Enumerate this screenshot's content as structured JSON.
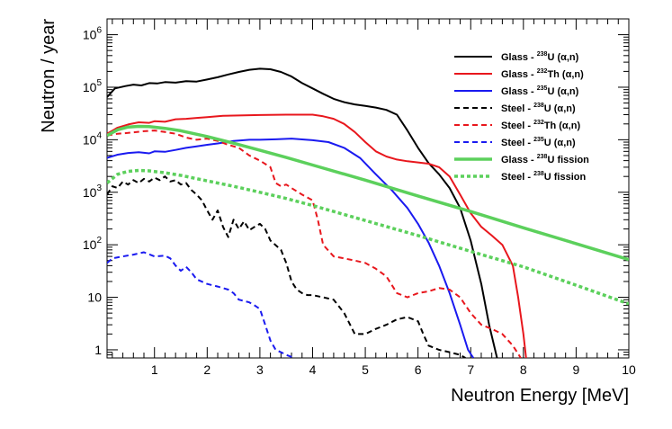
{
  "chart_data": {
    "type": "line",
    "title": "",
    "xlabel": "Neutron Energy [MeV]",
    "ylabel": "Neutron / year",
    "xlim": [
      0.1,
      10
    ],
    "ylim": [
      0.7,
      2000000
    ],
    "yscale": "log",
    "grid": false,
    "legend_position": "top-right",
    "x_ticks": [
      1,
      2,
      3,
      4,
      5,
      6,
      7,
      8,
      9,
      10
    ],
    "x_tick_labels": [
      "1",
      "2",
      "3",
      "4",
      "5",
      "6",
      "7",
      "8",
      "9",
      "10"
    ],
    "y_ticks": [
      {
        "value": 1,
        "base": "1",
        "exp": ""
      },
      {
        "value": 10,
        "base": "10",
        "exp": ""
      },
      {
        "value": 100,
        "base": "10",
        "exp": "2"
      },
      {
        "value": 1000,
        "base": "10",
        "exp": "3"
      },
      {
        "value": 10000,
        "base": "10",
        "exp": "4"
      },
      {
        "value": 100000,
        "base": "10",
        "exp": "5"
      },
      {
        "value": 1000000,
        "base": "10",
        "exp": "6"
      }
    ],
    "series": [
      {
        "name": "Glass - 238U (α,n)",
        "label_pre": "Glass - ",
        "label_sup": "238",
        "label_post": "U  (α,n)",
        "color": "#000000",
        "dash": "solid",
        "width": 2,
        "points": [
          [
            0.1,
            65000
          ],
          [
            0.25,
            95000
          ],
          [
            0.45,
            105000
          ],
          [
            0.6,
            112000
          ],
          [
            0.75,
            108000
          ],
          [
            0.9,
            120000
          ],
          [
            1.05,
            118000
          ],
          [
            1.2,
            125000
          ],
          [
            1.4,
            122000
          ],
          [
            1.6,
            130000
          ],
          [
            1.8,
            128000
          ],
          [
            2.0,
            140000
          ],
          [
            2.2,
            155000
          ],
          [
            2.4,
            175000
          ],
          [
            2.6,
            195000
          ],
          [
            2.8,
            215000
          ],
          [
            3.0,
            225000
          ],
          [
            3.2,
            220000
          ],
          [
            3.4,
            195000
          ],
          [
            3.6,
            160000
          ],
          [
            3.8,
            120000
          ],
          [
            4.0,
            95000
          ],
          [
            4.2,
            75000
          ],
          [
            4.4,
            60000
          ],
          [
            4.6,
            52000
          ],
          [
            4.8,
            47000
          ],
          [
            5.0,
            44000
          ],
          [
            5.2,
            41000
          ],
          [
            5.4,
            37000
          ],
          [
            5.6,
            30000
          ],
          [
            5.8,
            15000
          ],
          [
            6.0,
            7000
          ],
          [
            6.2,
            3600
          ],
          [
            6.4,
            2200
          ],
          [
            6.6,
            1200
          ],
          [
            6.8,
            500
          ],
          [
            7.0,
            120
          ],
          [
            7.2,
            18
          ],
          [
            7.35,
            3
          ],
          [
            7.5,
            0.7
          ]
        ]
      },
      {
        "name": "Glass - 232Th (α,n)",
        "label_pre": "Glass - ",
        "label_sup": "232",
        "label_post": "Th (α,n)",
        "color": "#e8171d",
        "dash": "solid",
        "width": 2,
        "points": [
          [
            0.1,
            13000
          ],
          [
            0.3,
            17000
          ],
          [
            0.5,
            19500
          ],
          [
            0.7,
            21500
          ],
          [
            0.9,
            21000
          ],
          [
            1.0,
            22500
          ],
          [
            1.2,
            22000
          ],
          [
            1.4,
            24500
          ],
          [
            1.6,
            25000
          ],
          [
            1.8,
            26000
          ],
          [
            2.0,
            27000
          ],
          [
            2.3,
            28500
          ],
          [
            2.6,
            29000
          ],
          [
            3.0,
            29500
          ],
          [
            3.5,
            30000
          ],
          [
            4.0,
            30000
          ],
          [
            4.2,
            28000
          ],
          [
            4.4,
            25000
          ],
          [
            4.6,
            20000
          ],
          [
            4.8,
            14000
          ],
          [
            5.0,
            9000
          ],
          [
            5.2,
            6000
          ],
          [
            5.4,
            4800
          ],
          [
            5.6,
            4200
          ],
          [
            5.8,
            3900
          ],
          [
            6.0,
            3700
          ],
          [
            6.2,
            3500
          ],
          [
            6.4,
            3000
          ],
          [
            6.6,
            2000
          ],
          [
            6.8,
            900
          ],
          [
            7.0,
            400
          ],
          [
            7.2,
            220
          ],
          [
            7.4,
            150
          ],
          [
            7.6,
            100
          ],
          [
            7.8,
            40
          ],
          [
            7.9,
            10
          ],
          [
            8.0,
            2
          ],
          [
            8.05,
            0.7
          ]
        ]
      },
      {
        "name": "Glass - 235U (α,n)",
        "label_pre": "Glass - ",
        "label_sup": "235",
        "label_post": "U  (α,n)",
        "color": "#1a1af0",
        "dash": "solid",
        "width": 2,
        "points": [
          [
            0.1,
            4500
          ],
          [
            0.3,
            5200
          ],
          [
            0.5,
            5600
          ],
          [
            0.7,
            5800
          ],
          [
            0.9,
            5500
          ],
          [
            1.0,
            6000
          ],
          [
            1.2,
            5900
          ],
          [
            1.4,
            6400
          ],
          [
            1.6,
            7000
          ],
          [
            1.8,
            7500
          ],
          [
            2.0,
            8000
          ],
          [
            2.2,
            8500
          ],
          [
            2.5,
            9500
          ],
          [
            2.8,
            10000
          ],
          [
            3.0,
            10000
          ],
          [
            3.3,
            10200
          ],
          [
            3.6,
            10500
          ],
          [
            4.0,
            9800
          ],
          [
            4.3,
            9000
          ],
          [
            4.6,
            7000
          ],
          [
            4.9,
            4500
          ],
          [
            5.2,
            2200
          ],
          [
            5.5,
            1100
          ],
          [
            5.8,
            500
          ],
          [
            6.0,
            250
          ],
          [
            6.2,
            110
          ],
          [
            6.4,
            40
          ],
          [
            6.6,
            12
          ],
          [
            6.8,
            3
          ],
          [
            6.95,
            1
          ],
          [
            7.05,
            0.7
          ]
        ]
      },
      {
        "name": "Steel - 238U (α,n)",
        "label_pre": "Steel - ",
        "label_sup": "238",
        "label_post": "U  (α,n)",
        "color": "#000000",
        "dash": "dashed",
        "width": 2,
        "points": [
          [
            0.1,
            900
          ],
          [
            0.2,
            1300
          ],
          [
            0.3,
            1200
          ],
          [
            0.4,
            1600
          ],
          [
            0.5,
            1400
          ],
          [
            0.6,
            1700
          ],
          [
            0.7,
            1500
          ],
          [
            0.8,
            1800
          ],
          [
            0.9,
            1600
          ],
          [
            1.0,
            1900
          ],
          [
            1.1,
            1700
          ],
          [
            1.2,
            2000
          ],
          [
            1.3,
            1600
          ],
          [
            1.4,
            1700
          ],
          [
            1.5,
            1400
          ],
          [
            1.6,
            1500
          ],
          [
            1.7,
            1100
          ],
          [
            1.8,
            900
          ],
          [
            1.9,
            700
          ],
          [
            2.0,
            450
          ],
          [
            2.1,
            300
          ],
          [
            2.2,
            450
          ],
          [
            2.3,
            220
          ],
          [
            2.4,
            140
          ],
          [
            2.5,
            300
          ],
          [
            2.6,
            200
          ],
          [
            2.7,
            280
          ],
          [
            2.8,
            190
          ],
          [
            2.9,
            220
          ],
          [
            3.0,
            250
          ],
          [
            3.1,
            200
          ],
          [
            3.2,
            120
          ],
          [
            3.4,
            80
          ],
          [
            3.5,
            45
          ],
          [
            3.6,
            20
          ],
          [
            3.7,
            14
          ],
          [
            3.8,
            12
          ],
          [
            3.9,
            11
          ],
          [
            4.0,
            11
          ],
          [
            4.2,
            10
          ],
          [
            4.4,
            9
          ],
          [
            4.6,
            5
          ],
          [
            4.8,
            2
          ],
          [
            5.0,
            2
          ],
          [
            5.2,
            2.5
          ],
          [
            5.4,
            3
          ],
          [
            5.6,
            3.8
          ],
          [
            5.8,
            4.2
          ],
          [
            6.0,
            3.5
          ],
          [
            6.1,
            2
          ],
          [
            6.2,
            1.2
          ],
          [
            6.4,
            1.0
          ],
          [
            6.6,
            0.9
          ],
          [
            6.8,
            0.8
          ],
          [
            6.9,
            0.7
          ]
        ]
      },
      {
        "name": "Steel - 232Th (α,n)",
        "label_pre": "Steel - ",
        "label_sup": "232",
        "label_post": "Th (α,n)",
        "color": "#e8171d",
        "dash": "dashed",
        "width": 2,
        "points": [
          [
            0.1,
            12000
          ],
          [
            0.3,
            13000
          ],
          [
            0.5,
            13500
          ],
          [
            0.8,
            14500
          ],
          [
            1.0,
            15000
          ],
          [
            1.2,
            14000
          ],
          [
            1.4,
            13000
          ],
          [
            1.6,
            11000
          ],
          [
            1.8,
            10000
          ],
          [
            2.0,
            10500
          ],
          [
            2.2,
            9500
          ],
          [
            2.4,
            8000
          ],
          [
            2.6,
            7000
          ],
          [
            2.8,
            5000
          ],
          [
            3.0,
            4000
          ],
          [
            3.2,
            3000
          ],
          [
            3.3,
            1500
          ],
          [
            3.4,
            1300
          ],
          [
            3.5,
            1400
          ],
          [
            3.6,
            1200
          ],
          [
            3.8,
            900
          ],
          [
            4.0,
            700
          ],
          [
            4.1,
            300
          ],
          [
            4.2,
            100
          ],
          [
            4.4,
            60
          ],
          [
            4.6,
            55
          ],
          [
            4.8,
            50
          ],
          [
            5.0,
            45
          ],
          [
            5.2,
            35
          ],
          [
            5.4,
            25
          ],
          [
            5.6,
            12
          ],
          [
            5.8,
            10
          ],
          [
            6.0,
            12
          ],
          [
            6.2,
            13
          ],
          [
            6.4,
            15
          ],
          [
            6.6,
            14
          ],
          [
            6.8,
            10
          ],
          [
            7.0,
            5
          ],
          [
            7.2,
            3
          ],
          [
            7.4,
            2.5
          ],
          [
            7.6,
            2
          ],
          [
            7.8,
            1.2
          ],
          [
            7.95,
            0.7
          ]
        ]
      },
      {
        "name": "Steel - 235U (α,n)",
        "label_pre": "Steel - ",
        "label_sup": "235",
        "label_post": "U  (α,n)",
        "color": "#1a1af0",
        "dash": "dashed",
        "width": 2,
        "points": [
          [
            0.1,
            45
          ],
          [
            0.2,
            55
          ],
          [
            0.4,
            60
          ],
          [
            0.6,
            65
          ],
          [
            0.8,
            72
          ],
          [
            1.0,
            60
          ],
          [
            1.2,
            62
          ],
          [
            1.3,
            55
          ],
          [
            1.4,
            40
          ],
          [
            1.5,
            32
          ],
          [
            1.6,
            38
          ],
          [
            1.7,
            30
          ],
          [
            1.8,
            22
          ],
          [
            2.0,
            18
          ],
          [
            2.2,
            16
          ],
          [
            2.4,
            14
          ],
          [
            2.5,
            12
          ],
          [
            2.6,
            9
          ],
          [
            2.8,
            8
          ],
          [
            2.9,
            7
          ],
          [
            3.0,
            6
          ],
          [
            3.1,
            3
          ],
          [
            3.2,
            1.5
          ],
          [
            3.3,
            1.0
          ],
          [
            3.4,
            0.9
          ],
          [
            3.5,
            0.8
          ],
          [
            3.65,
            0.7
          ]
        ]
      },
      {
        "name": "Glass - 238U fission",
        "label_pre": "Glass - ",
        "label_sup": "238",
        "label_post": "U  fission",
        "color": "#5cd05c",
        "dash": "solid",
        "width": 3.5,
        "points": [
          [
            0.1,
            12000
          ],
          [
            0.3,
            15500
          ],
          [
            0.5,
            17500
          ],
          [
            0.7,
            18000
          ],
          [
            0.9,
            17800
          ],
          [
            1.2,
            16500
          ],
          [
            1.5,
            14800
          ],
          [
            2.0,
            11500
          ],
          [
            2.5,
            8600
          ],
          [
            3.0,
            6300
          ],
          [
            3.5,
            4600
          ],
          [
            4.0,
            3300
          ],
          [
            5.0,
            1700
          ],
          [
            6.0,
            850
          ],
          [
            7.0,
            430
          ],
          [
            8.0,
            210
          ],
          [
            9.0,
            105
          ],
          [
            10.0,
            52
          ]
        ]
      },
      {
        "name": "Steel - 238U fission",
        "label_pre": "Steel - ",
        "label_sup": "238",
        "label_post": "U  fission",
        "color": "#5cd05c",
        "dash": "dotted",
        "width": 3.5,
        "points": [
          [
            0.1,
            1500
          ],
          [
            0.3,
            2200
          ],
          [
            0.5,
            2500
          ],
          [
            0.7,
            2600
          ],
          [
            0.9,
            2550
          ],
          [
            1.2,
            2350
          ],
          [
            1.5,
            2100
          ],
          [
            2.0,
            1650
          ],
          [
            2.5,
            1300
          ],
          [
            3.0,
            1000
          ],
          [
            3.5,
            760
          ],
          [
            4.0,
            560
          ],
          [
            5.0,
            290
          ],
          [
            6.0,
            150
          ],
          [
            7.0,
            75
          ],
          [
            8.0,
            38
          ],
          [
            9.0,
            17
          ],
          [
            10.0,
            7.5
          ]
        ]
      }
    ]
  }
}
